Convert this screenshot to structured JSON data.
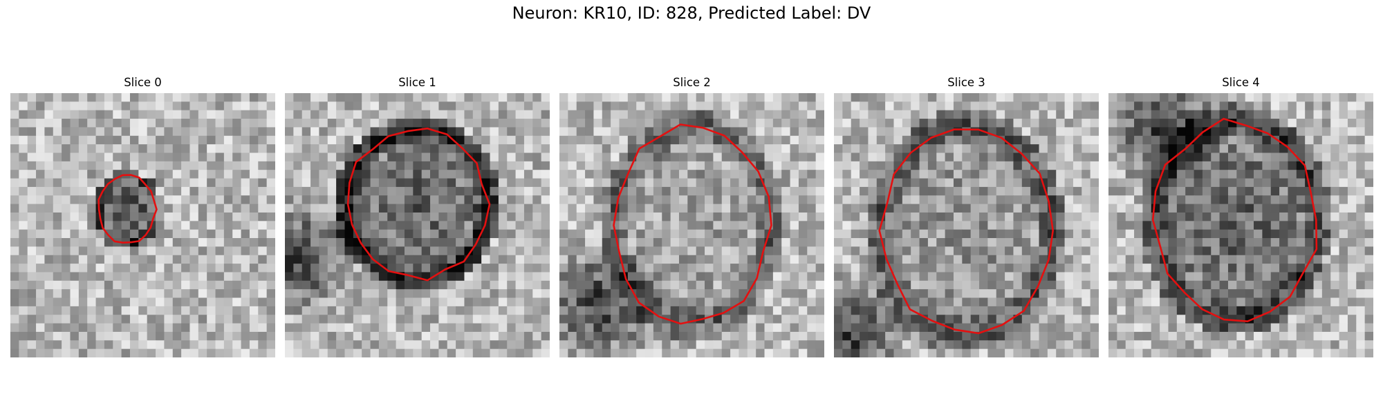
{
  "figure": {
    "title": "Neuron: KR10, ID: 828, Predicted Label: DV"
  },
  "slices": [
    {
      "label": "Slice 0"
    },
    {
      "label": "Slice 1"
    },
    {
      "label": "Slice 2"
    },
    {
      "label": "Slice 3"
    },
    {
      "label": "Slice 4"
    }
  ],
  "colors": {
    "contour": "#e41010",
    "background": "#ffffff"
  }
}
